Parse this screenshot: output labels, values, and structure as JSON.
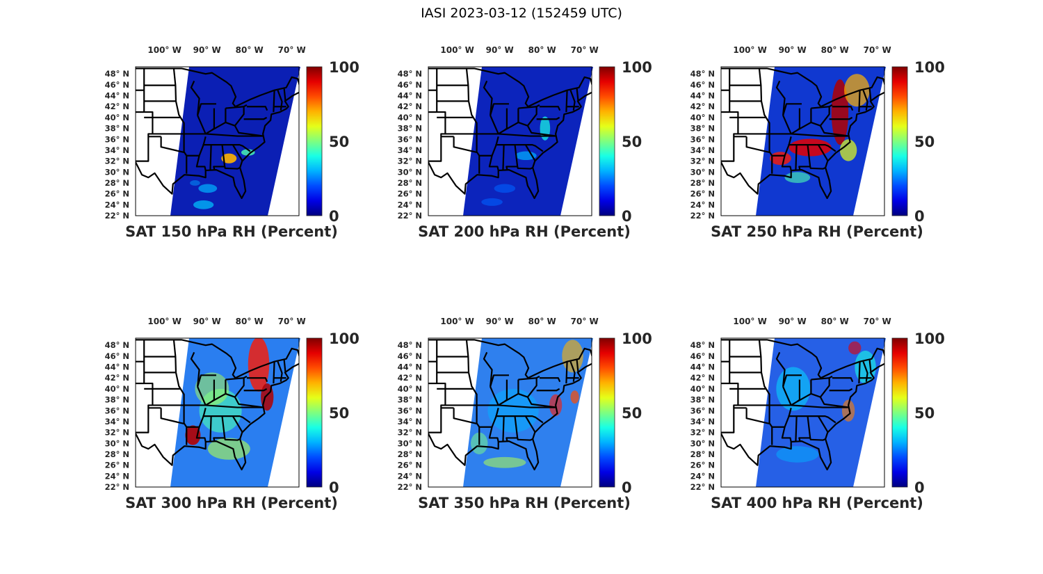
{
  "figure_title": "IASI 2023-03-12 (152459 UTC)",
  "chart_data": [
    {
      "type": "heatmap",
      "title": "SAT 150 hPa RH (Percent)",
      "level_hPa": 150,
      "variable": "RH",
      "units": "Percent",
      "base_color": "#0b1fb4",
      "features": "mostly dry (<15%); small moist patch ~60-80% over Georgia/SC; light blue patches over Gulf"
    },
    {
      "type": "heatmap",
      "title": "SAT 200 hPa RH (Percent)",
      "level_hPa": 200,
      "variable": "RH",
      "units": "Percent",
      "base_color": "#0c24bc",
      "features": "mostly dry; moist streak ~40% along Carolinas/Mid-Atlantic coast"
    },
    {
      "type": "heatmap",
      "title": "SAT 250 hPa RH (Percent)",
      "level_hPa": 250,
      "variable": "RH",
      "units": "Percent",
      "base_color": "#1038d0",
      "features": "moist band 70-100% from Louisiana through Southeast to New England; dry elsewhere"
    },
    {
      "type": "heatmap",
      "title": "SAT 300 hPa RH (Percent)",
      "level_hPa": 300,
      "variable": "RH",
      "units": "Percent",
      "base_color": "#2a7ef0",
      "features": "moderate 30-60% broad; high 80-100% over Louisiana and Northeast"
    },
    {
      "type": "heatmap",
      "title": "SAT 350 hPa RH (Percent)",
      "level_hPa": 350,
      "variable": "RH",
      "units": "Percent",
      "base_color": "#2f80ee",
      "features": "moderate 20-50%; scattered high values offshore and Northeast"
    },
    {
      "type": "heatmap",
      "title": "SAT 400 hPa RH (Percent)",
      "level_hPa": 400,
      "variable": "RH",
      "units": "Percent",
      "base_color": "#2660e6",
      "features": "mostly 15-40%; some high values NE coast and Carolinas offshore"
    }
  ],
  "axes": {
    "lon_ticks": [
      "100° W",
      "90° W",
      "80° W",
      "70° W"
    ],
    "lat_ticks": [
      "48° N",
      "46° N",
      "44° N",
      "42° N",
      "40° N",
      "38° N",
      "36° N",
      "34° N",
      "32° N",
      "30° N",
      "28° N",
      "26° N",
      "24° N",
      "22° N"
    ],
    "lon_values": [
      -100,
      -90,
      -80,
      -70
    ],
    "lat_values": [
      48,
      46,
      44,
      42,
      40,
      38,
      36,
      34,
      32,
      30,
      28,
      26,
      24,
      22
    ],
    "colorbar_ticks": [
      "100",
      "50",
      "0"
    ],
    "clim": [
      0,
      100
    ],
    "colormap": "jet"
  }
}
